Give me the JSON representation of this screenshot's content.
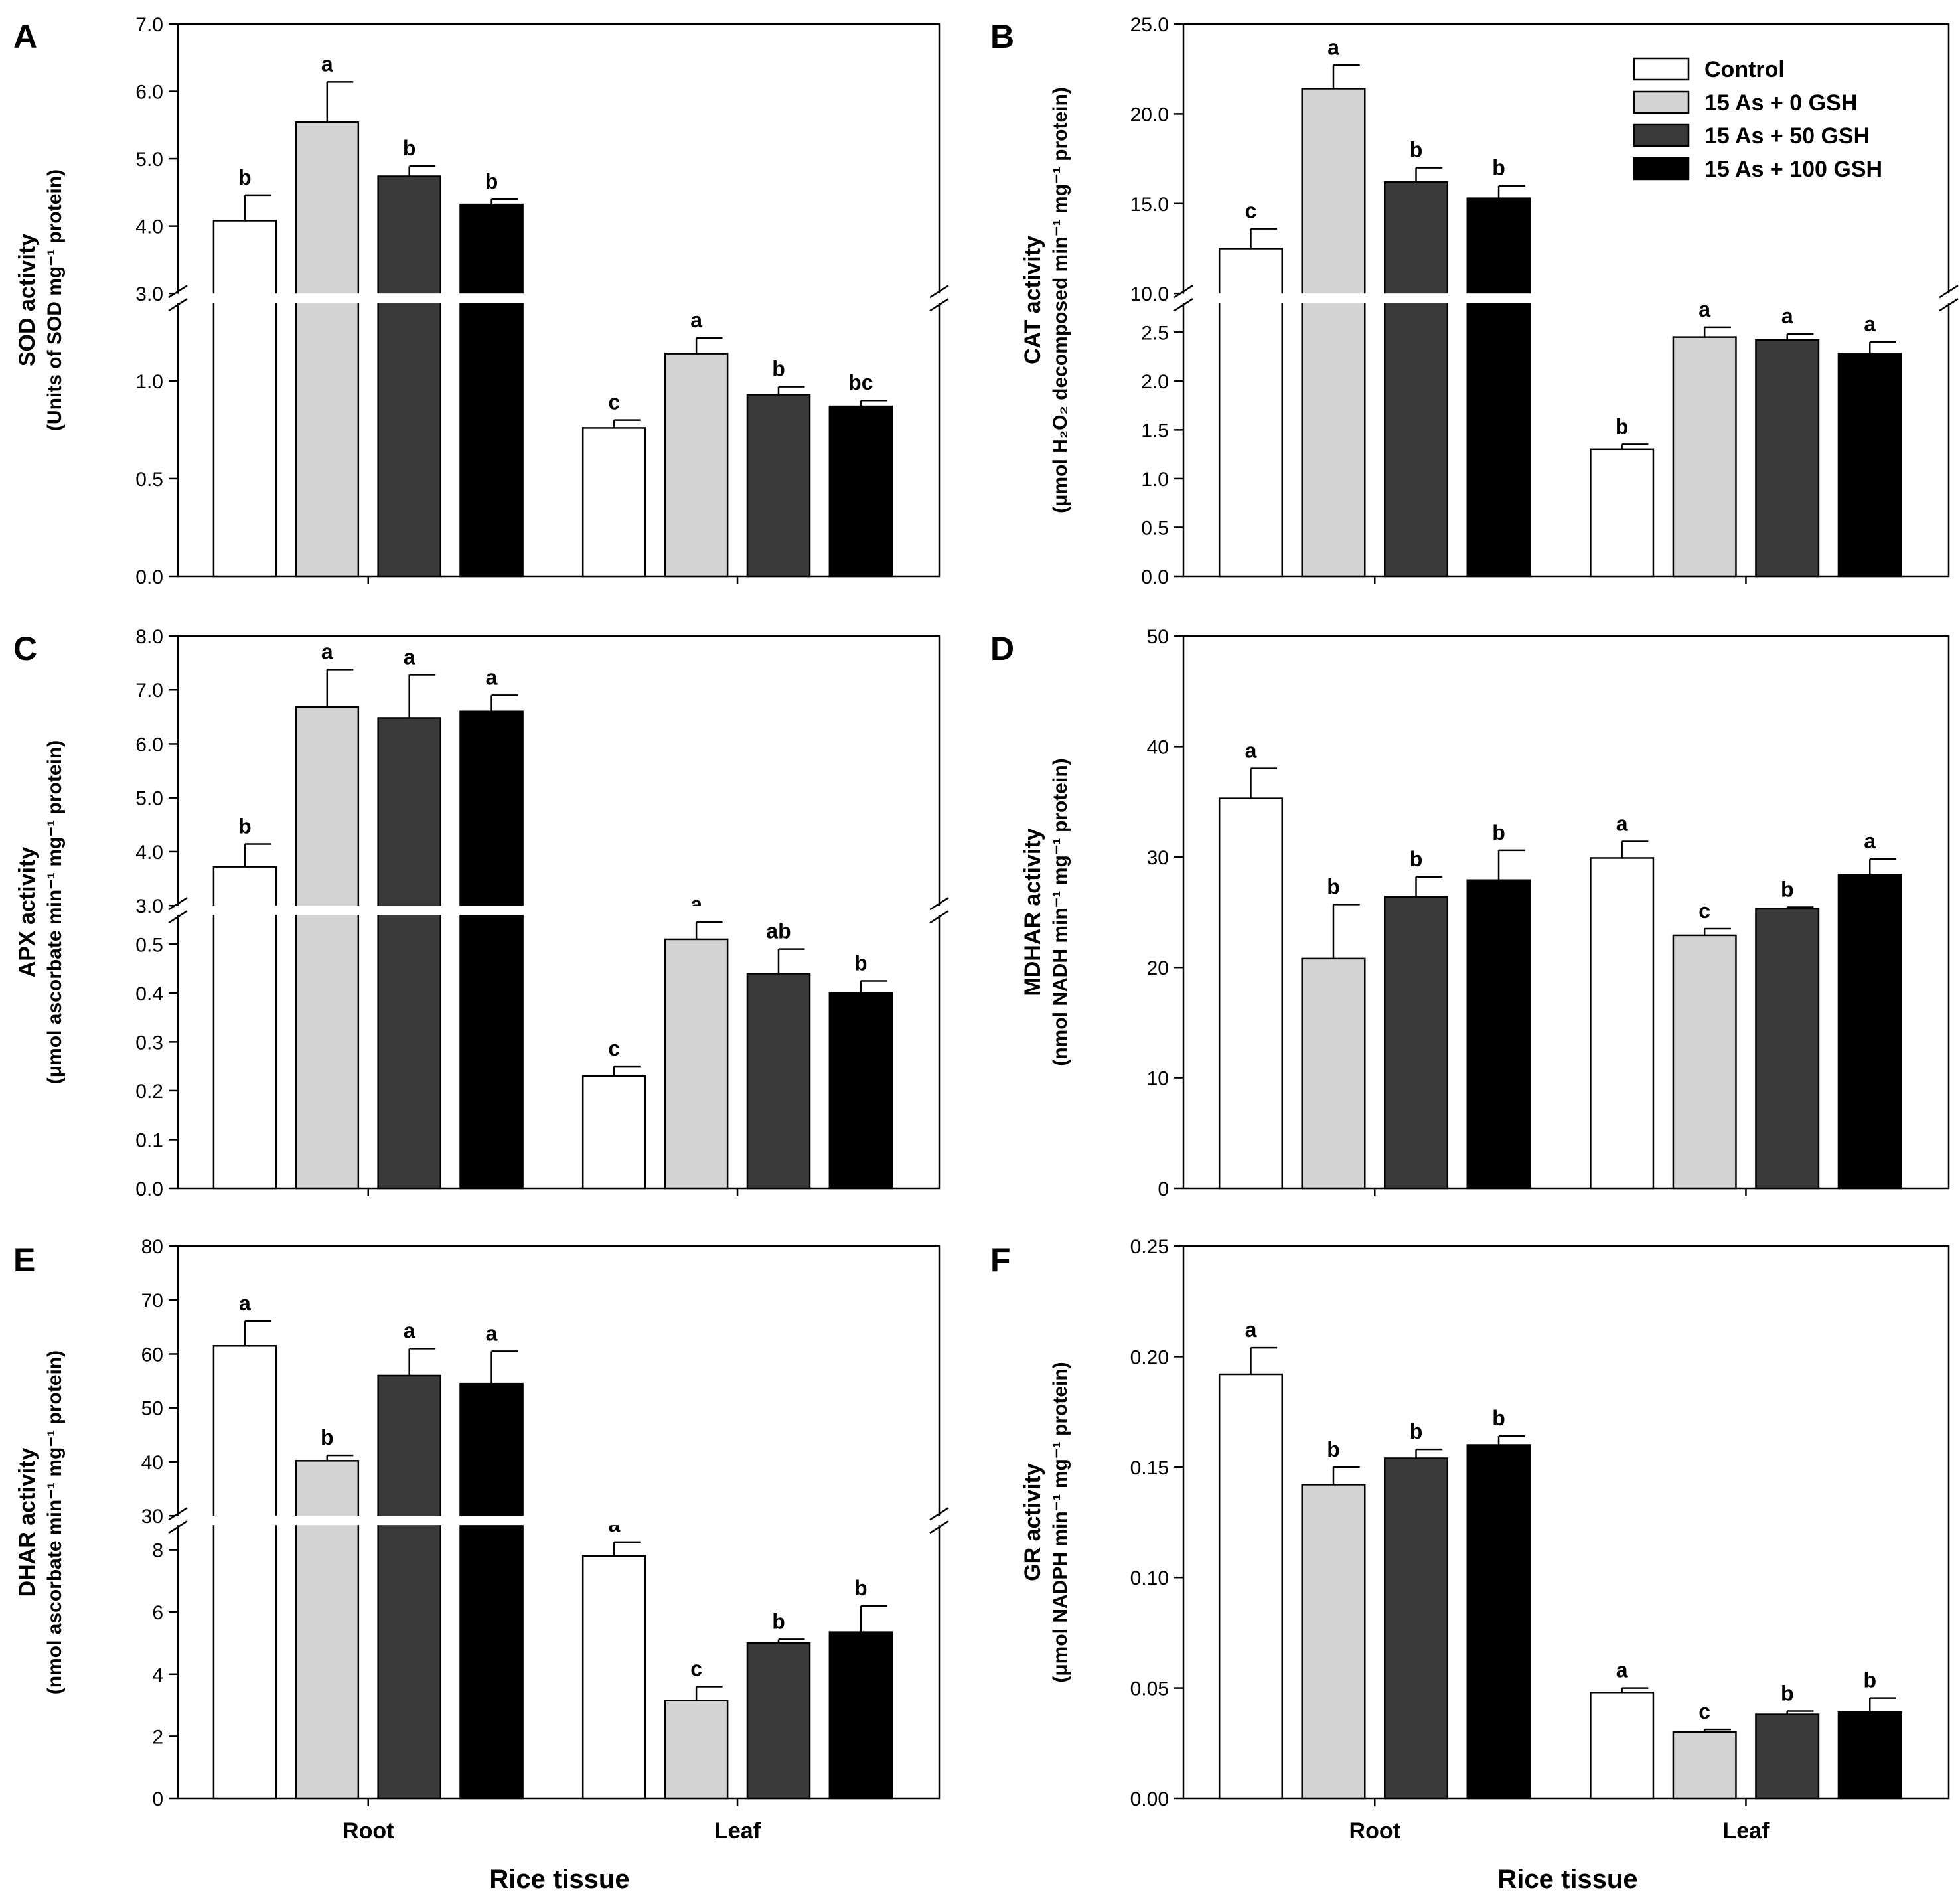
{
  "figure": {
    "x_axis_title": "Rice tissue"
  },
  "colors": {
    "Control": "#ffffff",
    "15 As + 0 GSH": "#d3d3d3",
    "15 As + 50 GSH": "#3a3a3a",
    "15 As + 100 GSH": "#000000"
  },
  "chart_data": [
    {
      "panel": "A",
      "type": "bar",
      "ylabel": "SOD activity",
      "ylabel2": "(Units of SOD mg⁻¹ protein)",
      "xlabel": "",
      "categories": [
        "Root",
        "Leaf"
      ],
      "break": {
        "lower": [
          0,
          1.4
        ],
        "upper": [
          3.0,
          7.0
        ]
      },
      "yticks_lower": [
        "0.0",
        "0.5",
        "1.0"
      ],
      "yticks_upper": [
        "3.0",
        "4.0",
        "5.0",
        "6.0",
        "7.0"
      ],
      "series": [
        {
          "name": "Control",
          "values": [
            4.08,
            0.76
          ],
          "err": [
            0.38,
            0.04
          ],
          "letters": [
            "b",
            "c"
          ]
        },
        {
          "name": "15 As + 0 GSH",
          "values": [
            5.54,
            1.14
          ],
          "err": [
            0.6,
            0.08
          ],
          "letters": [
            "a",
            "a"
          ]
        },
        {
          "name": "15 As + 50 GSH",
          "values": [
            4.74,
            0.93
          ],
          "err": [
            0.15,
            0.04
          ],
          "letters": [
            "b",
            "b"
          ]
        },
        {
          "name": "15 As + 100 GSH",
          "values": [
            4.32,
            0.87
          ],
          "err": [
            0.08,
            0.03
          ],
          "letters": [
            "b",
            "bc"
          ]
        }
      ]
    },
    {
      "panel": "B",
      "type": "bar",
      "ylabel": "CAT activity",
      "ylabel2": "(μmol H₂O₂ decomposed min⁻¹ mg⁻¹ protein)",
      "xlabel": "",
      "categories": [
        "Root",
        "Leaf"
      ],
      "break": {
        "lower": [
          0,
          2.8
        ],
        "upper": [
          10.0,
          25.0
        ]
      },
      "yticks_lower": [
        "0.0",
        "0.5",
        "1.0",
        "1.5",
        "2.0",
        "2.5"
      ],
      "yticks_upper": [
        "10.0",
        "15.0",
        "20.0",
        "25.0"
      ],
      "legend": {
        "position": "top-right",
        "entries": [
          "Control",
          "15 As + 0 GSH",
          "15 As + 50 GSH",
          "15 As + 100 GSH"
        ]
      },
      "series": [
        {
          "name": "Control",
          "values": [
            12.5,
            1.3
          ],
          "err": [
            1.1,
            0.05
          ],
          "letters": [
            "c",
            "b"
          ]
        },
        {
          "name": "15 As + 0 GSH",
          "values": [
            21.4,
            2.45
          ],
          "err": [
            1.3,
            0.1
          ],
          "letters": [
            "a",
            "a"
          ]
        },
        {
          "name": "15 As + 50 GSH",
          "values": [
            16.2,
            2.42
          ],
          "err": [
            0.8,
            0.06
          ],
          "letters": [
            "b",
            "a"
          ]
        },
        {
          "name": "15 As + 100 GSH",
          "values": [
            15.3,
            2.28
          ],
          "err": [
            0.7,
            0.12
          ],
          "letters": [
            "b",
            "a"
          ]
        }
      ]
    },
    {
      "panel": "C",
      "type": "bar",
      "ylabel": "APX activity",
      "ylabel2": "(μmol ascorbate min⁻¹ mg⁻¹ protein)",
      "xlabel": "",
      "categories": [
        "Root",
        "Leaf"
      ],
      "break": {
        "lower": [
          0,
          0.56
        ],
        "upper": [
          3.0,
          8.0
        ]
      },
      "yticks_lower": [
        "0.0",
        "0.1",
        "0.2",
        "0.3",
        "0.4",
        "0.5"
      ],
      "yticks_upper": [
        "3.0",
        "4.0",
        "5.0",
        "6.0",
        "7.0",
        "8.0"
      ],
      "series": [
        {
          "name": "Control",
          "values": [
            3.72,
            0.23
          ],
          "err": [
            0.42,
            0.02
          ],
          "letters": [
            "b",
            "c"
          ]
        },
        {
          "name": "15 As + 0 GSH",
          "values": [
            6.68,
            0.51
          ],
          "err": [
            0.7,
            0.035
          ],
          "letters": [
            "a",
            "a"
          ]
        },
        {
          "name": "15 As + 50 GSH",
          "values": [
            6.48,
            0.44
          ],
          "err": [
            0.8,
            0.05
          ],
          "letters": [
            "a",
            "ab"
          ]
        },
        {
          "name": "15 As + 100 GSH",
          "values": [
            6.6,
            0.4
          ],
          "err": [
            0.3,
            0.025
          ],
          "letters": [
            "a",
            "b"
          ]
        }
      ]
    },
    {
      "panel": "D",
      "type": "bar",
      "ylabel": "MDHAR activity",
      "ylabel2": "(nmol NADH min⁻¹ mg⁻¹ protein)",
      "xlabel": "",
      "categories": [
        "Root",
        "Leaf"
      ],
      "ylim": [
        0,
        50
      ],
      "yticks": [
        "0",
        "10",
        "20",
        "30",
        "40",
        "50"
      ],
      "series": [
        {
          "name": "Control",
          "values": [
            35.3,
            29.9
          ],
          "err": [
            2.7,
            1.5
          ],
          "letters": [
            "a",
            "a"
          ]
        },
        {
          "name": "15 As + 0 GSH",
          "values": [
            20.8,
            22.9
          ],
          "err": [
            4.9,
            0.6
          ],
          "letters": [
            "b",
            "c"
          ]
        },
        {
          "name": "15 As + 50 GSH",
          "values": [
            26.4,
            25.3
          ],
          "err": [
            1.8,
            0.15
          ],
          "letters": [
            "b",
            "b"
          ]
        },
        {
          "name": "15 As + 100 GSH",
          "values": [
            27.9,
            28.4
          ],
          "err": [
            2.7,
            1.4
          ],
          "letters": [
            "b",
            "a"
          ]
        }
      ]
    },
    {
      "panel": "E",
      "type": "bar",
      "ylabel": "DHAR activity",
      "ylabel2": "(nmol ascorbate min⁻¹ mg⁻¹ protein)",
      "xlabel": "Rice tissue",
      "categories": [
        "Root",
        "Leaf"
      ],
      "break": {
        "lower": [
          0,
          8.8
        ],
        "upper": [
          30,
          80
        ]
      },
      "yticks_lower": [
        "0",
        "2",
        "4",
        "6",
        "8"
      ],
      "yticks_upper": [
        "30",
        "40",
        "50",
        "60",
        "70",
        "80"
      ],
      "series": [
        {
          "name": "Control",
          "values": [
            61.5,
            7.8
          ],
          "err": [
            4.6,
            0.45
          ],
          "letters": [
            "a",
            "a"
          ]
        },
        {
          "name": "15 As + 0 GSH",
          "values": [
            40.2,
            3.15
          ],
          "err": [
            1.0,
            0.45
          ],
          "letters": [
            "b",
            "c"
          ]
        },
        {
          "name": "15 As + 50 GSH",
          "values": [
            56.0,
            5.0
          ],
          "err": [
            5.0,
            0.12
          ],
          "letters": [
            "a",
            "b"
          ]
        },
        {
          "name": "15 As + 100 GSH",
          "values": [
            54.5,
            5.35
          ],
          "err": [
            6.0,
            0.85
          ],
          "letters": [
            "a",
            "b"
          ]
        }
      ]
    },
    {
      "panel": "F",
      "type": "bar",
      "ylabel": "GR activity",
      "ylabel2": "(μmol NADPH min⁻¹ mg⁻¹ protein)",
      "xlabel": "Rice tissue",
      "categories": [
        "Root",
        "Leaf"
      ],
      "ylim": [
        0,
        0.25
      ],
      "yticks": [
        "0.00",
        "0.05",
        "0.10",
        "0.15",
        "0.20",
        "0.25"
      ],
      "series": [
        {
          "name": "Control",
          "values": [
            0.192,
            0.048
          ],
          "err": [
            0.012,
            0.002
          ],
          "letters": [
            "a",
            "a"
          ]
        },
        {
          "name": "15 As + 0 GSH",
          "values": [
            0.142,
            0.03
          ],
          "err": [
            0.008,
            0.0012
          ],
          "letters": [
            "b",
            "c"
          ]
        },
        {
          "name": "15 As + 50 GSH",
          "values": [
            0.154,
            0.038
          ],
          "err": [
            0.004,
            0.0015
          ],
          "letters": [
            "b",
            "b"
          ]
        },
        {
          "name": "15 As + 100 GSH",
          "values": [
            0.16,
            0.039
          ],
          "err": [
            0.004,
            0.0065
          ],
          "letters": [
            "b",
            "b"
          ]
        }
      ]
    }
  ]
}
